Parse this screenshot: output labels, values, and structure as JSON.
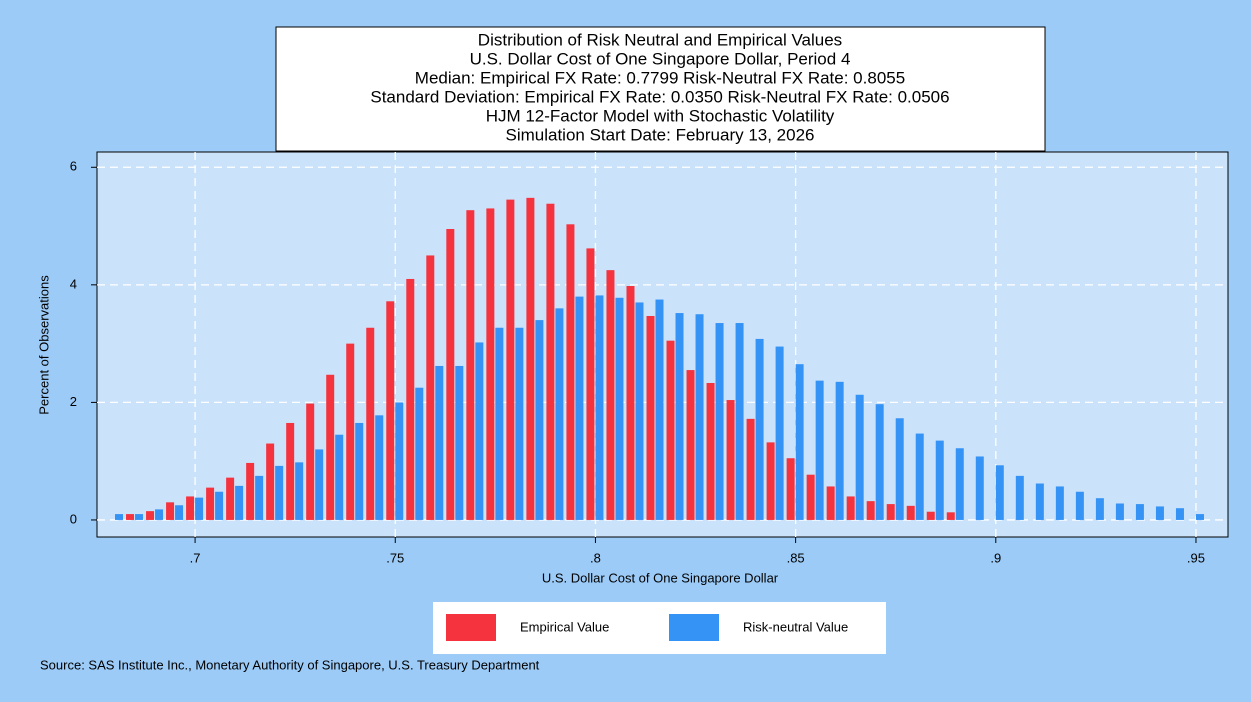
{
  "chart_data": {
    "type": "bar",
    "title": "Distribution of Risk Neutral and Empirical Values",
    "subtitle": [
      "U.S. Dollar Cost of One Singapore Dollar, Period 4",
      "Median: Empirical FX Rate:  0.7799   Risk-Neutral FX Rate:  0.8055",
      "Standard Deviation: Empirical FX Rate:  0.0350   Risk-Neutral FX Rate:  0.0506",
      "HJM 12-Factor Model with Stochastic Volatility",
      "Simulation Start Date: February 13, 2026"
    ],
    "x_label": "U.S. Dollar Cost of One Singapore Dollar",
    "y_label": "Percent of Observations",
    "source": "Source: SAS Institute Inc., Monetary Authority of Singapore, U.S. Treasury Department",
    "x": [
      0.68,
      0.685,
      0.69,
      0.695,
      0.7,
      0.705,
      0.71,
      0.715,
      0.72,
      0.725,
      0.73,
      0.735,
      0.74,
      0.745,
      0.75,
      0.755,
      0.76,
      0.765,
      0.77,
      0.775,
      0.78,
      0.785,
      0.79,
      0.795,
      0.8,
      0.805,
      0.81,
      0.815,
      0.82,
      0.825,
      0.83,
      0.835,
      0.84,
      0.845,
      0.85,
      0.855,
      0.86,
      0.865,
      0.87,
      0.875,
      0.88,
      0.885,
      0.89,
      0.895,
      0.9,
      0.905,
      0.91,
      0.915,
      0.92,
      0.925,
      0.93,
      0.935,
      0.94,
      0.945,
      0.95
    ],
    "series": [
      {
        "name": "Empirical Value",
        "color": "#f5333f",
        "values": [
          null,
          0.1,
          0.15,
          0.3,
          0.4,
          0.55,
          0.72,
          0.97,
          1.3,
          1.65,
          1.98,
          2.47,
          3.0,
          3.27,
          3.72,
          4.1,
          4.5,
          4.95,
          5.27,
          5.3,
          5.45,
          5.48,
          5.38,
          5.03,
          4.62,
          4.25,
          3.98,
          3.47,
          3.05,
          2.55,
          2.33,
          2.04,
          1.72,
          1.32,
          1.05,
          0.77,
          0.57,
          0.4,
          0.32,
          0.27,
          0.24,
          0.14,
          0.13,
          null,
          null,
          null,
          null,
          null,
          null,
          null,
          null,
          null,
          null,
          null,
          null
        ]
      },
      {
        "name": "Risk-neutral Value",
        "color": "#3593f5",
        "values": [
          0.1,
          0.1,
          0.18,
          0.25,
          0.38,
          0.48,
          0.58,
          0.75,
          0.92,
          0.98,
          1.2,
          1.45,
          1.65,
          1.78,
          2.0,
          2.25,
          2.62,
          2.62,
          3.02,
          3.27,
          3.27,
          3.4,
          3.6,
          3.8,
          3.82,
          3.78,
          3.7,
          3.75,
          3.52,
          3.5,
          3.35,
          3.35,
          3.08,
          2.95,
          2.65,
          2.37,
          2.35,
          2.13,
          1.97,
          1.73,
          1.47,
          1.35,
          1.22,
          1.08,
          0.93,
          0.75,
          0.62,
          0.57,
          0.48,
          0.37,
          0.28,
          0.27,
          0.23,
          0.2,
          0.1
        ]
      }
    ],
    "xlim": [
      0.6755,
      0.958
    ],
    "ylim": [
      -0.29,
      6.26
    ],
    "xticks": [
      {
        "value": 0.7,
        "label": ".7"
      },
      {
        "value": 0.75,
        "label": ".75"
      },
      {
        "value": 0.8,
        "label": ".8"
      },
      {
        "value": 0.85,
        "label": ".85"
      },
      {
        "value": 0.9,
        "label": ".9"
      },
      {
        "value": 0.95,
        "label": ".95"
      }
    ],
    "yticks": [
      0,
      2,
      4,
      6
    ],
    "grid": true
  }
}
